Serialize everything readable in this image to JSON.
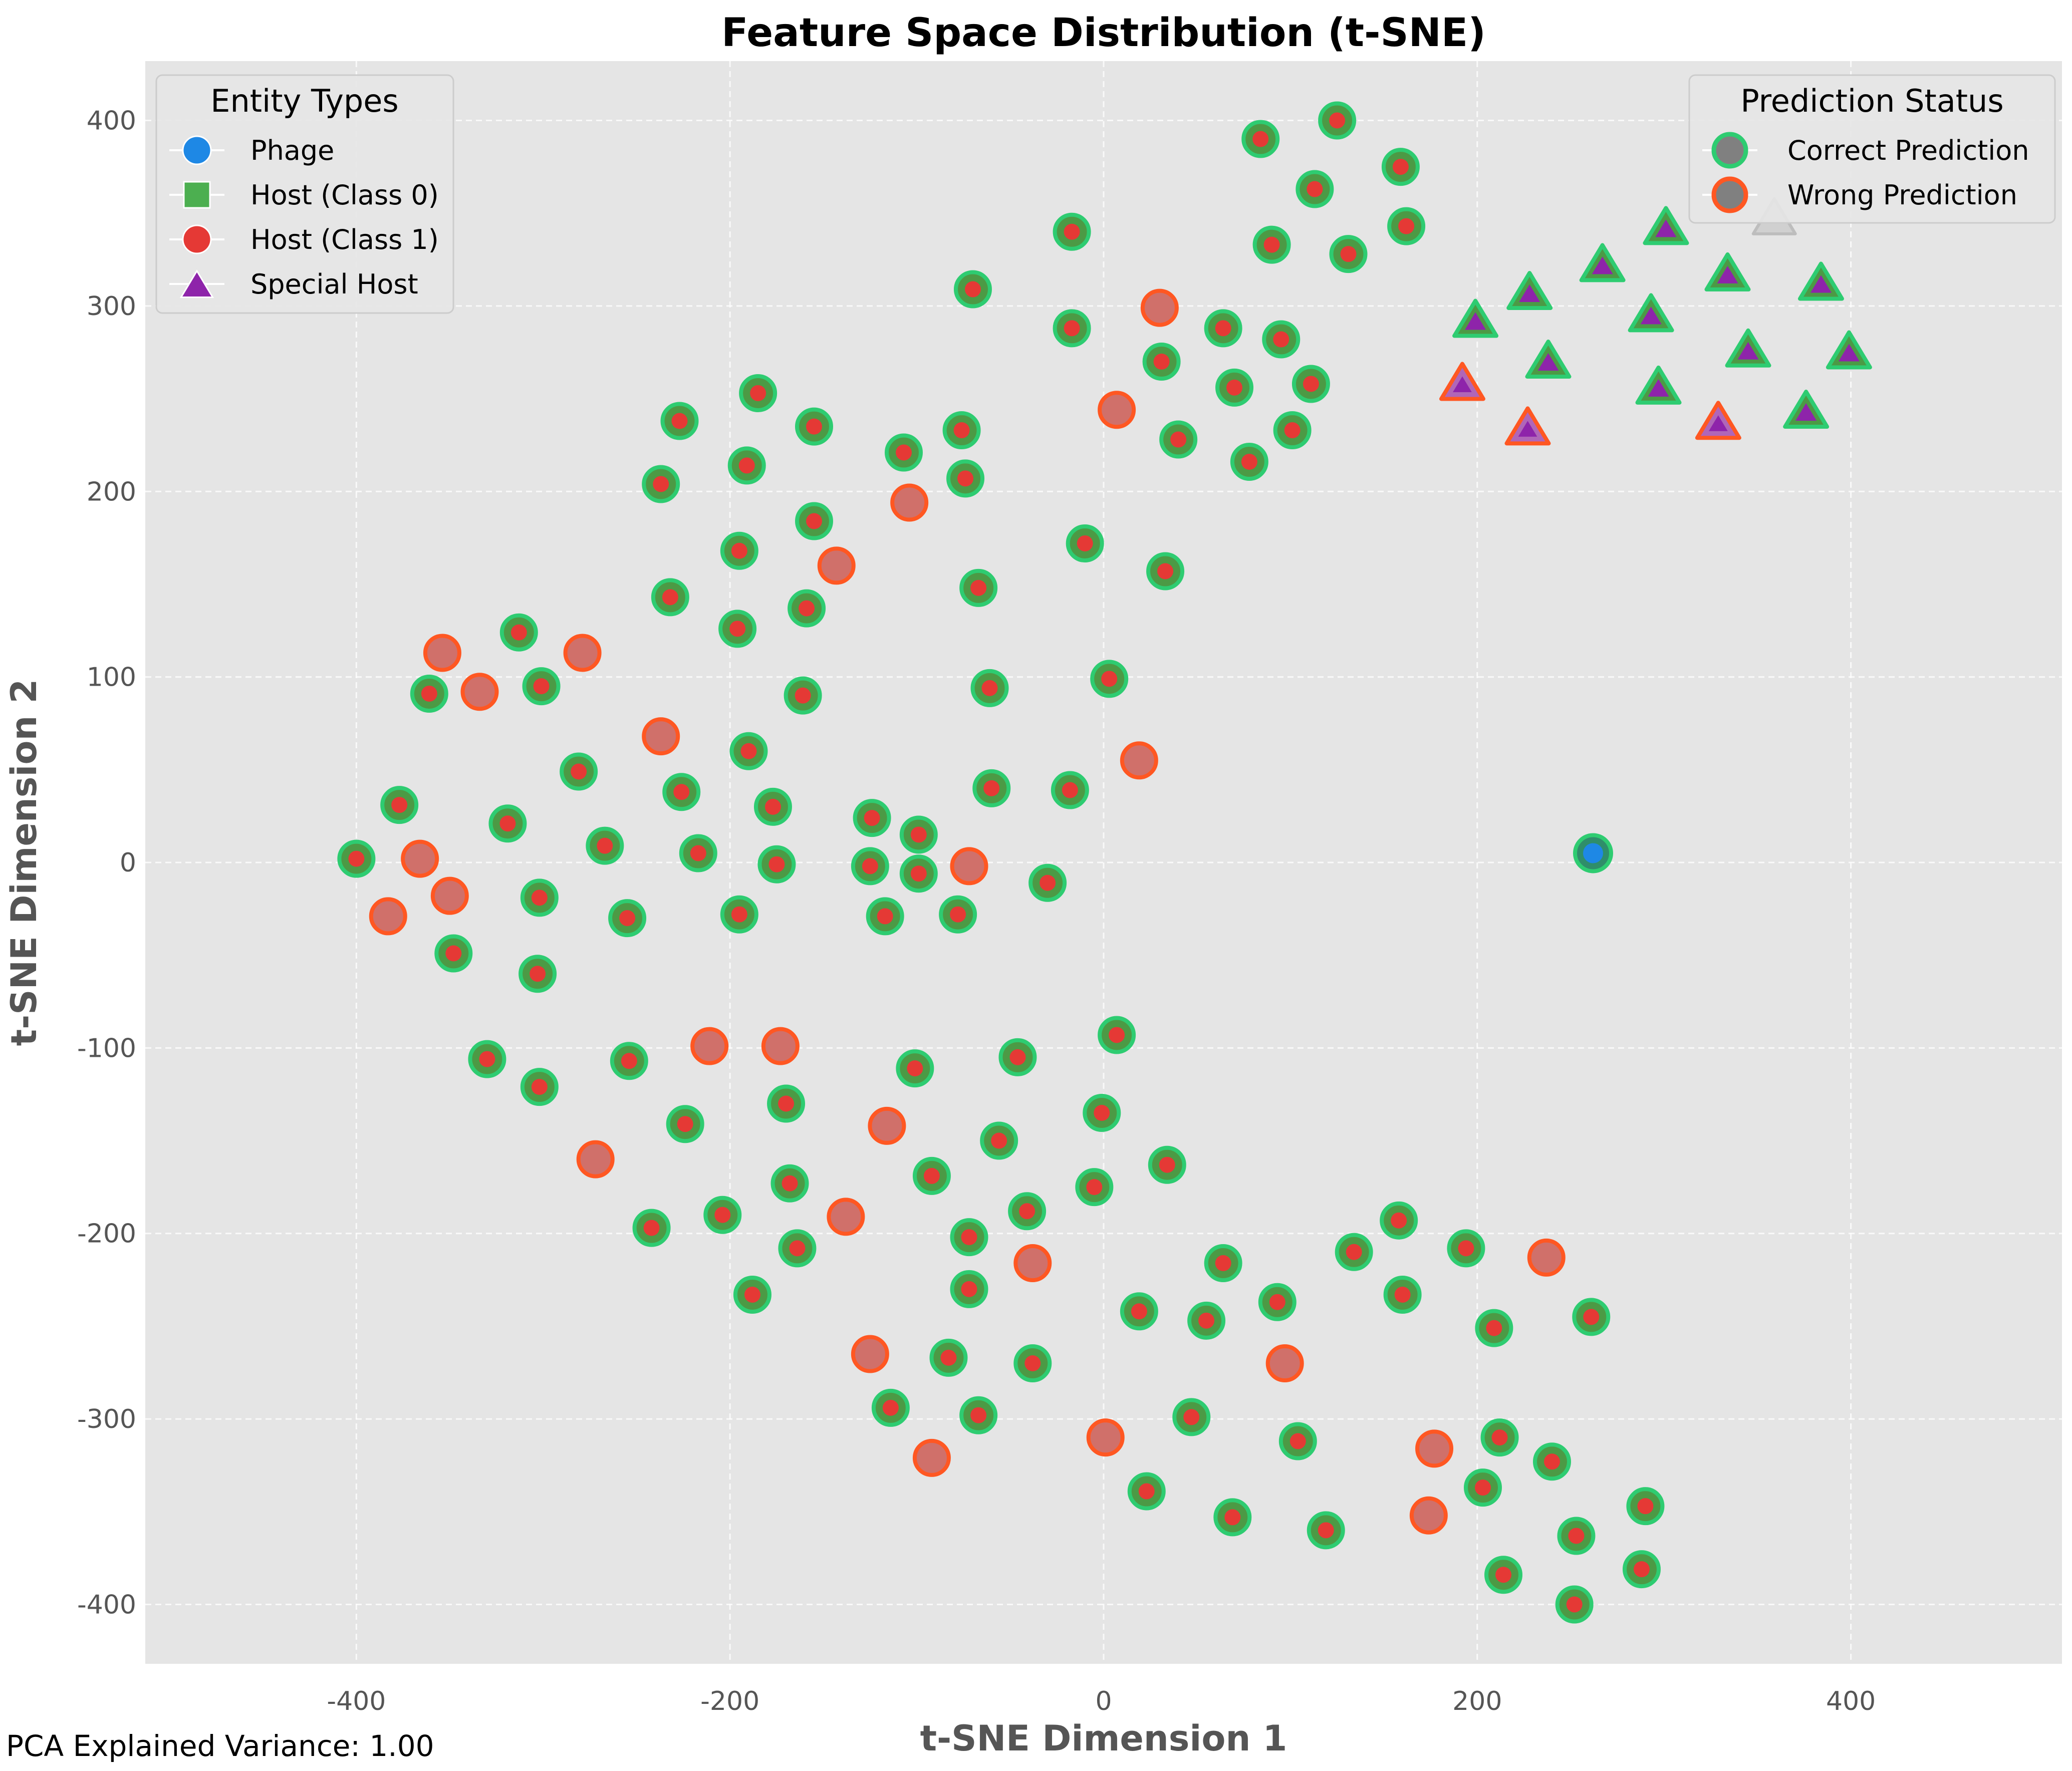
{
  "chart_data": {
    "type": "scatter",
    "title": "Feature Space Distribution (t-SNE)",
    "xlabel": "t-SNE Dimension 1",
    "ylabel": "t-SNE Dimension 2",
    "xlim": [
      -513,
      513
    ],
    "ylim": [
      -432,
      432
    ],
    "xticks": [
      -400,
      -200,
      0,
      200,
      400
    ],
    "yticks": [
      -400,
      -300,
      -200,
      -100,
      0,
      100,
      200,
      300,
      400
    ],
    "grid": true,
    "colors": {
      "background": "#e5e5e5",
      "phage": "#1e88e5",
      "host_class0": "#4caf50",
      "host_class1": "#e53935",
      "special_host": "#8e24aa",
      "correct_edge": "#2ecc71",
      "wrong_edge": "#ff5722",
      "wrong_fill": "#d0706a",
      "correct_fill": "#4c9a45"
    },
    "legend_entities": {
      "title": "Entity Types",
      "placement": "top-left",
      "items": [
        {
          "label": "Phage",
          "marker": "circle",
          "color": "#1e88e5"
        },
        {
          "label": "Host (Class 0)",
          "marker": "square",
          "color": "#4caf50"
        },
        {
          "label": "Host (Class 1)",
          "marker": "circle",
          "color": "#e53935"
        },
        {
          "label": "Special Host",
          "marker": "triangle",
          "color": "#8e24aa"
        }
      ]
    },
    "legend_status": {
      "title": "Prediction Status",
      "placement": "top-right",
      "items": [
        {
          "label": "Correct Prediction",
          "edge": "#2ecc71"
        },
        {
          "label": "Wrong Prediction",
          "edge": "#ff5722"
        }
      ]
    },
    "phage_points": [
      [
        262,
        5
      ]
    ],
    "host_points": [
      [
        -400,
        2,
        "c"
      ],
      [
        -377,
        31,
        "c"
      ],
      [
        -366,
        2,
        "w"
      ],
      [
        -383,
        -29,
        "w"
      ],
      [
        -361,
        91,
        "c"
      ],
      [
        -354,
        113,
        "w"
      ],
      [
        -334,
        92,
        "w"
      ],
      [
        -350,
        -18,
        "w"
      ],
      [
        -348,
        -49,
        "c"
      ],
      [
        -313,
        124,
        "c"
      ],
      [
        -301,
        95,
        "c"
      ],
      [
        -302,
        -19,
        "c"
      ],
      [
        -303,
        -60,
        "c"
      ],
      [
        -330,
        -106,
        "c"
      ],
      [
        -302,
        -121,
        "c"
      ],
      [
        -319,
        21,
        "c"
      ],
      [
        -279,
        113,
        "w"
      ],
      [
        -281,
        49,
        "c"
      ],
      [
        -267,
        9,
        "c"
      ],
      [
        -255,
        -30,
        "c"
      ],
      [
        -272,
        -160,
        "w"
      ],
      [
        -254,
        -107,
        "c"
      ],
      [
        -237,
        204,
        "c"
      ],
      [
        -227,
        238,
        "c"
      ],
      [
        -232,
        143,
        "c"
      ],
      [
        -237,
        68,
        "w"
      ],
      [
        -226,
        38,
        "c"
      ],
      [
        -217,
        5,
        "c"
      ],
      [
        -224,
        -141,
        "c"
      ],
      [
        -242,
        -197,
        "c"
      ],
      [
        -211,
        -99,
        "w"
      ],
      [
        -185,
        253,
        "c"
      ],
      [
        -191,
        214,
        "c"
      ],
      [
        -195,
        168,
        "c"
      ],
      [
        -196,
        126,
        "c"
      ],
      [
        -190,
        60,
        "c"
      ],
      [
        -177,
        30,
        "c"
      ],
      [
        -175,
        -1,
        "c"
      ],
      [
        -195,
        -28,
        "c"
      ],
      [
        -204,
        -190,
        "c"
      ],
      [
        -188,
        -233,
        "c"
      ],
      [
        -173,
        -99,
        "w"
      ],
      [
        -170,
        -130,
        "c"
      ],
      [
        -168,
        -173,
        "c"
      ],
      [
        -155,
        235,
        "c"
      ],
      [
        -155,
        184,
        "c"
      ],
      [
        -159,
        137,
        "c"
      ],
      [
        -161,
        90,
        "c"
      ],
      [
        -143,
        160,
        "w"
      ],
      [
        -164,
        -208,
        "c"
      ],
      [
        -138,
        -191,
        "w"
      ],
      [
        -124,
        24,
        "c"
      ],
      [
        -125,
        -2,
        "c"
      ],
      [
        -117,
        -29,
        "c"
      ],
      [
        -116,
        -142,
        "w"
      ],
      [
        -114,
        -294,
        "c"
      ],
      [
        -125,
        -265,
        "w"
      ],
      [
        -107,
        221,
        "c"
      ],
      [
        -104,
        194,
        "w"
      ],
      [
        -99,
        15,
        "c"
      ],
      [
        -99,
        -6,
        "c"
      ],
      [
        -101,
        -111,
        "c"
      ],
      [
        -92,
        -169,
        "c"
      ],
      [
        -92,
        -321,
        "w"
      ],
      [
        -83,
        -267,
        "c"
      ],
      [
        -76,
        233,
        "c"
      ],
      [
        -74,
        207,
        "c"
      ],
      [
        -70,
        309,
        "c"
      ],
      [
        -67,
        148,
        "c"
      ],
      [
        -61,
        94,
        "c"
      ],
      [
        -60,
        40,
        "c"
      ],
      [
        -72,
        -2,
        "w"
      ],
      [
        -78,
        -28,
        "c"
      ],
      [
        -72,
        -202,
        "c"
      ],
      [
        -72,
        -230,
        "c"
      ],
      [
        -67,
        -298,
        "c"
      ],
      [
        -56,
        -150,
        "c"
      ],
      [
        -46,
        -105,
        "c"
      ],
      [
        -41,
        -188,
        "c"
      ],
      [
        -38,
        -216,
        "w"
      ],
      [
        -38,
        -270,
        "c"
      ],
      [
        -17,
        340,
        "c"
      ],
      [
        -17,
        288,
        "c"
      ],
      [
        -18,
        39,
        "c"
      ],
      [
        -30,
        -11,
        "c"
      ],
      [
        -10,
        172,
        "c"
      ],
      [
        3,
        99,
        "c"
      ],
      [
        -5,
        -175,
        "c"
      ],
      [
        -1,
        -135,
        "c"
      ],
      [
        7,
        -93,
        "c"
      ],
      [
        1,
        -310,
        "w"
      ],
      [
        30,
        299,
        "w"
      ],
      [
        31,
        270,
        "c"
      ],
      [
        7,
        244,
        "w"
      ],
      [
        33,
        157,
        "c"
      ],
      [
        19,
        55,
        "w"
      ],
      [
        34,
        -163,
        "c"
      ],
      [
        19,
        -242,
        "c"
      ],
      [
        23,
        -339,
        "c"
      ],
      [
        40,
        228,
        "c"
      ],
      [
        70,
        256,
        "c"
      ],
      [
        64,
        288,
        "c"
      ],
      [
        78,
        216,
        "c"
      ],
      [
        55,
        -247,
        "c"
      ],
      [
        64,
        -216,
        "c"
      ],
      [
        47,
        -299,
        "c"
      ],
      [
        69,
        -353,
        "c"
      ],
      [
        84,
        390,
        "c"
      ],
      [
        90,
        333,
        "c"
      ],
      [
        95,
        282,
        "c"
      ],
      [
        101,
        233,
        "c"
      ],
      [
        111,
        258,
        "c"
      ],
      [
        113,
        363,
        "c"
      ],
      [
        97,
        -270,
        "w"
      ],
      [
        93,
        -237,
        "c"
      ],
      [
        104,
        -312,
        "c"
      ],
      [
        119,
        -360,
        "c"
      ],
      [
        125,
        400,
        "c"
      ],
      [
        131,
        328,
        "c"
      ],
      [
        159,
        375,
        "c"
      ],
      [
        162,
        343,
        "c"
      ],
      [
        134,
        -210,
        "c"
      ],
      [
        158,
        -193,
        "c"
      ],
      [
        160,
        -233,
        "c"
      ],
      [
        177,
        -316,
        "w"
      ],
      [
        174,
        -352,
        "w"
      ],
      [
        194,
        -208,
        "c"
      ],
      [
        209,
        -251,
        "c"
      ],
      [
        214,
        -384,
        "c"
      ],
      [
        212,
        -310,
        "c"
      ],
      [
        203,
        -337,
        "c"
      ],
      [
        237,
        -213,
        "w"
      ],
      [
        240,
        -323,
        "c"
      ],
      [
        261,
        -245,
        "c"
      ],
      [
        253,
        -363,
        "c"
      ],
      [
        252,
        -400,
        "c"
      ],
      [
        290,
        -347,
        "c"
      ],
      [
        288,
        -381,
        "c"
      ]
    ],
    "special_points": [
      [
        192,
        258,
        "w"
      ],
      [
        199,
        292,
        "c"
      ],
      [
        227,
        234,
        "w"
      ],
      [
        228,
        307,
        "c"
      ],
      [
        238,
        270,
        "c"
      ],
      [
        267,
        322,
        "c"
      ],
      [
        293,
        295,
        "c"
      ],
      [
        297,
        256,
        "c"
      ],
      [
        301,
        342,
        "c"
      ],
      [
        329,
        237,
        "w"
      ],
      [
        334,
        317,
        "c"
      ],
      [
        345,
        276,
        "c"
      ],
      [
        359,
        347,
        "g"
      ],
      [
        376,
        243,
        "c"
      ],
      [
        384,
        312,
        "c"
      ],
      [
        399,
        275,
        "c"
      ]
    ]
  },
  "footnote": "PCA Explained Variance: 1.00"
}
